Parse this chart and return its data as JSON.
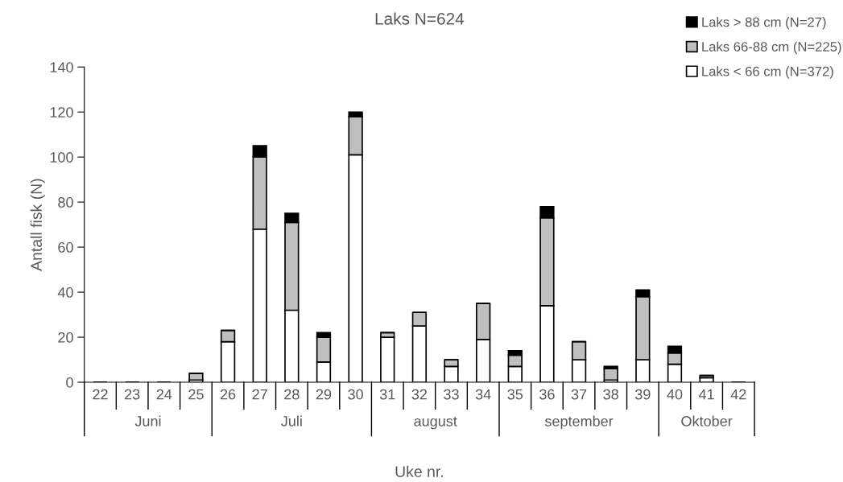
{
  "chart_data": {
    "type": "bar",
    "stacked": true,
    "title": "Laks N=624",
    "xlabel": "Uke nr.",
    "ylabel": "Antall fisk (N)",
    "categories": [
      "22",
      "23",
      "24",
      "25",
      "26",
      "27",
      "28",
      "29",
      "30",
      "31",
      "32",
      "33",
      "34",
      "35",
      "36",
      "37",
      "38",
      "39",
      "40",
      "41",
      "42"
    ],
    "series": [
      {
        "name": "Laks < 66 cm (N=372)",
        "color": "#ffffff",
        "values": [
          0,
          0,
          0,
          1,
          18,
          68,
          32,
          9,
          101,
          20,
          25,
          7,
          19,
          7,
          34,
          10,
          1,
          10,
          8,
          2,
          0
        ]
      },
      {
        "name": "Laks 66-88 cm (N=225)",
        "color": "#bfbfbf",
        "values": [
          0,
          0,
          0,
          3,
          5,
          32,
          39,
          11,
          17,
          2,
          6,
          3,
          16,
          5,
          39,
          8,
          5,
          28,
          5,
          1,
          0
        ]
      },
      {
        "name": "Laks > 88 cm (N=27)",
        "color": "#000000",
        "values": [
          0,
          0,
          0,
          0,
          0,
          5,
          4,
          2,
          2,
          0,
          0,
          0,
          0,
          2,
          5,
          0,
          1,
          3,
          3,
          0,
          0
        ]
      }
    ],
    "ylim": [
      0,
      140
    ],
    "yticks": [
      0,
      20,
      40,
      60,
      80,
      100,
      120,
      140
    ],
    "grid": false,
    "legend": "top right",
    "annotations": [
      "Juni",
      "Juli",
      "august",
      "september",
      "Oktober"
    ]
  }
}
